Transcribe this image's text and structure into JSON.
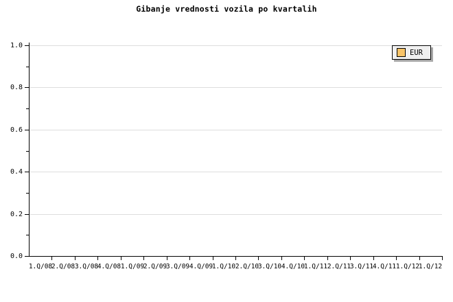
{
  "title": "Gibanje vrednosti vozila po kvartalih",
  "legend": {
    "position": "top-right",
    "items": [
      {
        "label": "EUR",
        "swatch_color": "#F9C468"
      }
    ]
  },
  "colors": {
    "background": "#FFFFFF",
    "axis": "#000000",
    "gridline": "#DDDDDD",
    "text": "#000000",
    "legend_bg": "#F0F0F0",
    "legend_border": "#000000",
    "legend_shadow": "#A9A9A9",
    "swatch_border": "#000000"
  },
  "chart_data": {
    "type": "line",
    "title": "Gibanje vrednosti vozila po kvartalih",
    "categories": [
      "1.Q/08",
      "2.Q/08",
      "3.Q/08",
      "4.Q/08",
      "1.Q/09",
      "2.Q/09",
      "3.Q/09",
      "4.Q/09",
      "1.Q/10",
      "2.Q/10",
      "3.Q/10",
      "4.Q/10",
      "1.Q/11",
      "2.Q/11",
      "3.Q/11",
      "4.Q/11",
      "1.Q/12",
      "1.Q/12"
    ],
    "series": [
      {
        "name": "EUR",
        "color": "#F9C468",
        "values": []
      }
    ],
    "xlabel": "",
    "ylabel": "",
    "ylim": [
      0.0,
      1.0
    ],
    "y_major_step": 0.2,
    "y_minor_step": 0.1,
    "y_major_ticks": [
      0.0,
      0.2,
      0.4,
      0.6,
      0.8,
      1.0
    ],
    "grid": "horizontal-major-only",
    "legend_position": "top-right",
    "plot_empty": true
  }
}
